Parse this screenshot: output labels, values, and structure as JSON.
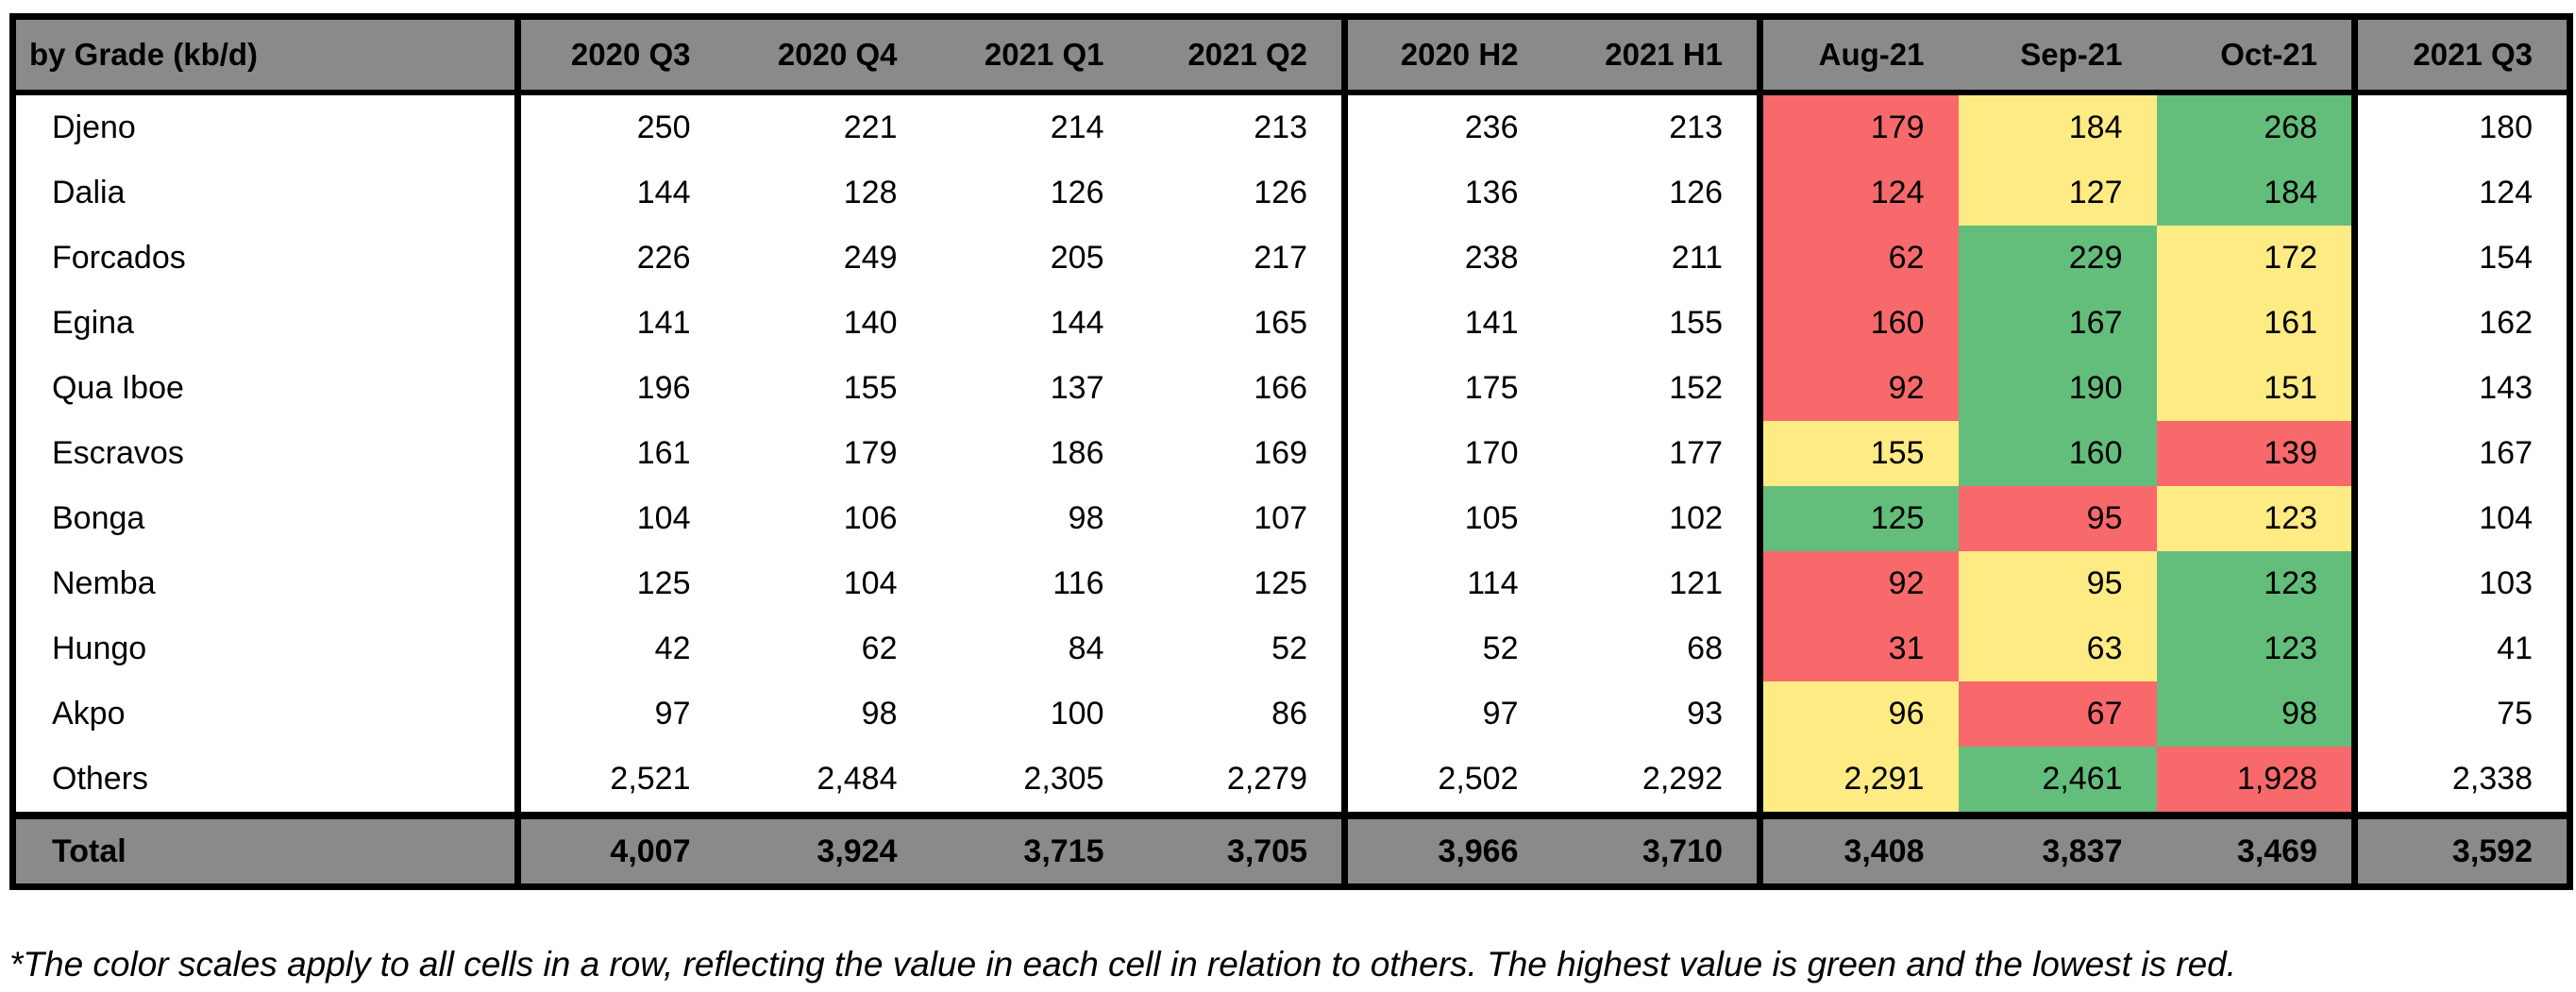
{
  "table": {
    "corner_label": "by Grade (kb/d)",
    "column_groups": [
      {
        "name": "quarters",
        "headers": [
          "2020 Q3",
          "2020 Q4",
          "2021 Q1",
          "2021 Q2"
        ]
      },
      {
        "name": "halves",
        "headers": [
          "2020 H2",
          "2021 H1"
        ]
      },
      {
        "name": "months",
        "headers": [
          "Aug-21",
          "Sep-21",
          "Oct-21"
        ]
      },
      {
        "name": "latest_quarter",
        "headers": [
          "2021 Q3"
        ]
      }
    ],
    "rows": [
      {
        "grade": "Djeno",
        "quarters": [
          "250",
          "221",
          "214",
          "213"
        ],
        "halves": [
          "236",
          "213"
        ],
        "months": [
          {
            "v": "179",
            "c": "red"
          },
          {
            "v": "184",
            "c": "yellow"
          },
          {
            "v": "268",
            "c": "green"
          }
        ],
        "latest": "180"
      },
      {
        "grade": "Dalia",
        "quarters": [
          "144",
          "128",
          "126",
          "126"
        ],
        "halves": [
          "136",
          "126"
        ],
        "months": [
          {
            "v": "124",
            "c": "red"
          },
          {
            "v": "127",
            "c": "yellow"
          },
          {
            "v": "184",
            "c": "green"
          }
        ],
        "latest": "124"
      },
      {
        "grade": "Forcados",
        "quarters": [
          "226",
          "249",
          "205",
          "217"
        ],
        "halves": [
          "238",
          "211"
        ],
        "months": [
          {
            "v": "62",
            "c": "red"
          },
          {
            "v": "229",
            "c": "green"
          },
          {
            "v": "172",
            "c": "yellow"
          }
        ],
        "latest": "154"
      },
      {
        "grade": "Egina",
        "quarters": [
          "141",
          "140",
          "144",
          "165"
        ],
        "halves": [
          "141",
          "155"
        ],
        "months": [
          {
            "v": "160",
            "c": "red"
          },
          {
            "v": "167",
            "c": "green"
          },
          {
            "v": "161",
            "c": "yellow"
          }
        ],
        "latest": "162"
      },
      {
        "grade": "Qua Iboe",
        "quarters": [
          "196",
          "155",
          "137",
          "166"
        ],
        "halves": [
          "175",
          "152"
        ],
        "months": [
          {
            "v": "92",
            "c": "red"
          },
          {
            "v": "190",
            "c": "green"
          },
          {
            "v": "151",
            "c": "yellow"
          }
        ],
        "latest": "143"
      },
      {
        "grade": "Escravos",
        "quarters": [
          "161",
          "179",
          "186",
          "169"
        ],
        "halves": [
          "170",
          "177"
        ],
        "months": [
          {
            "v": "155",
            "c": "yellow"
          },
          {
            "v": "160",
            "c": "green"
          },
          {
            "v": "139",
            "c": "red"
          }
        ],
        "latest": "167"
      },
      {
        "grade": "Bonga",
        "quarters": [
          "104",
          "106",
          "98",
          "107"
        ],
        "halves": [
          "105",
          "102"
        ],
        "months": [
          {
            "v": "125",
            "c": "green"
          },
          {
            "v": "95",
            "c": "red"
          },
          {
            "v": "123",
            "c": "yellow"
          }
        ],
        "latest": "104"
      },
      {
        "grade": "Nemba",
        "quarters": [
          "125",
          "104",
          "116",
          "125"
        ],
        "halves": [
          "114",
          "121"
        ],
        "months": [
          {
            "v": "92",
            "c": "red"
          },
          {
            "v": "95",
            "c": "yellow"
          },
          {
            "v": "123",
            "c": "green"
          }
        ],
        "latest": "103"
      },
      {
        "grade": "Hungo",
        "quarters": [
          "42",
          "62",
          "84",
          "52"
        ],
        "halves": [
          "52",
          "68"
        ],
        "months": [
          {
            "v": "31",
            "c": "red"
          },
          {
            "v": "63",
            "c": "yellow"
          },
          {
            "v": "123",
            "c": "green"
          }
        ],
        "latest": "41"
      },
      {
        "grade": "Akpo",
        "quarters": [
          "97",
          "98",
          "100",
          "86"
        ],
        "halves": [
          "97",
          "93"
        ],
        "months": [
          {
            "v": "96",
            "c": "yellow"
          },
          {
            "v": "67",
            "c": "red"
          },
          {
            "v": "98",
            "c": "green"
          }
        ],
        "latest": "75"
      },
      {
        "grade": "Others",
        "quarters": [
          "2,521",
          "2,484",
          "2,305",
          "2,279"
        ],
        "halves": [
          "2,502",
          "2,292"
        ],
        "months": [
          {
            "v": "2,291",
            "c": "yellow"
          },
          {
            "v": "2,461",
            "c": "green"
          },
          {
            "v": "1,928",
            "c": "red"
          }
        ],
        "latest": "2,338"
      }
    ],
    "total": {
      "grade": "Total",
      "quarters": [
        "4,007",
        "3,924",
        "3,715",
        "3,705"
      ],
      "halves": [
        "3,966",
        "3,710"
      ],
      "months": [
        {
          "v": "3,408"
        },
        {
          "v": "3,837"
        },
        {
          "v": "3,469"
        }
      ],
      "latest": "3,592"
    }
  },
  "footnote": "*The color scales apply to all cells in a row, reflecting the value in each cell in relation to others. The highest value is green and the lowest is red.",
  "colors": {
    "header_bg": "#8A8A8A",
    "total_bg": "#8A8A8A",
    "border_black": "#000000",
    "scale_red": "#F8696B",
    "scale_yellow": "#FFEB84",
    "scale_green": "#63BE7B"
  },
  "chart_data": {
    "type": "table",
    "title": "by Grade (kb/d)",
    "columns": [
      "2020 Q3",
      "2020 Q4",
      "2021 Q1",
      "2021 Q2",
      "2020 H2",
      "2021 H1",
      "Aug-21",
      "Sep-21",
      "Oct-21",
      "2021 Q3"
    ],
    "rows": [
      {
        "grade": "Djeno",
        "values": [
          250,
          221,
          214,
          213,
          236,
          213,
          179,
          184,
          268,
          180
        ]
      },
      {
        "grade": "Dalia",
        "values": [
          144,
          128,
          126,
          126,
          136,
          126,
          124,
          127,
          184,
          124
        ]
      },
      {
        "grade": "Forcados",
        "values": [
          226,
          249,
          205,
          217,
          238,
          211,
          62,
          229,
          172,
          154
        ]
      },
      {
        "grade": "Egina",
        "values": [
          141,
          140,
          144,
          165,
          141,
          155,
          160,
          167,
          161,
          162
        ]
      },
      {
        "grade": "Qua Iboe",
        "values": [
          196,
          155,
          137,
          166,
          175,
          152,
          92,
          190,
          151,
          143
        ]
      },
      {
        "grade": "Escravos",
        "values": [
          161,
          179,
          186,
          169,
          170,
          177,
          155,
          160,
          139,
          167
        ]
      },
      {
        "grade": "Bonga",
        "values": [
          104,
          106,
          98,
          107,
          105,
          102,
          125,
          95,
          123,
          104
        ]
      },
      {
        "grade": "Nemba",
        "values": [
          125,
          104,
          116,
          125,
          114,
          121,
          92,
          95,
          123,
          103
        ]
      },
      {
        "grade": "Hungo",
        "values": [
          42,
          62,
          84,
          52,
          52,
          68,
          31,
          63,
          123,
          41
        ]
      },
      {
        "grade": "Akpo",
        "values": [
          97,
          98,
          100,
          86,
          97,
          93,
          96,
          67,
          98,
          75
        ]
      },
      {
        "grade": "Others",
        "values": [
          2521,
          2484,
          2305,
          2279,
          2502,
          2292,
          2291,
          2461,
          1928,
          2338
        ]
      },
      {
        "grade": "Total",
        "values": [
          4007,
          3924,
          3715,
          3705,
          3966,
          3710,
          3408,
          3837,
          3469,
          3592
        ]
      }
    ],
    "heatmap": "Aug-21, Sep-21, Oct-21 cells are color-scaled per row: highest value green, middle yellow, lowest red"
  }
}
